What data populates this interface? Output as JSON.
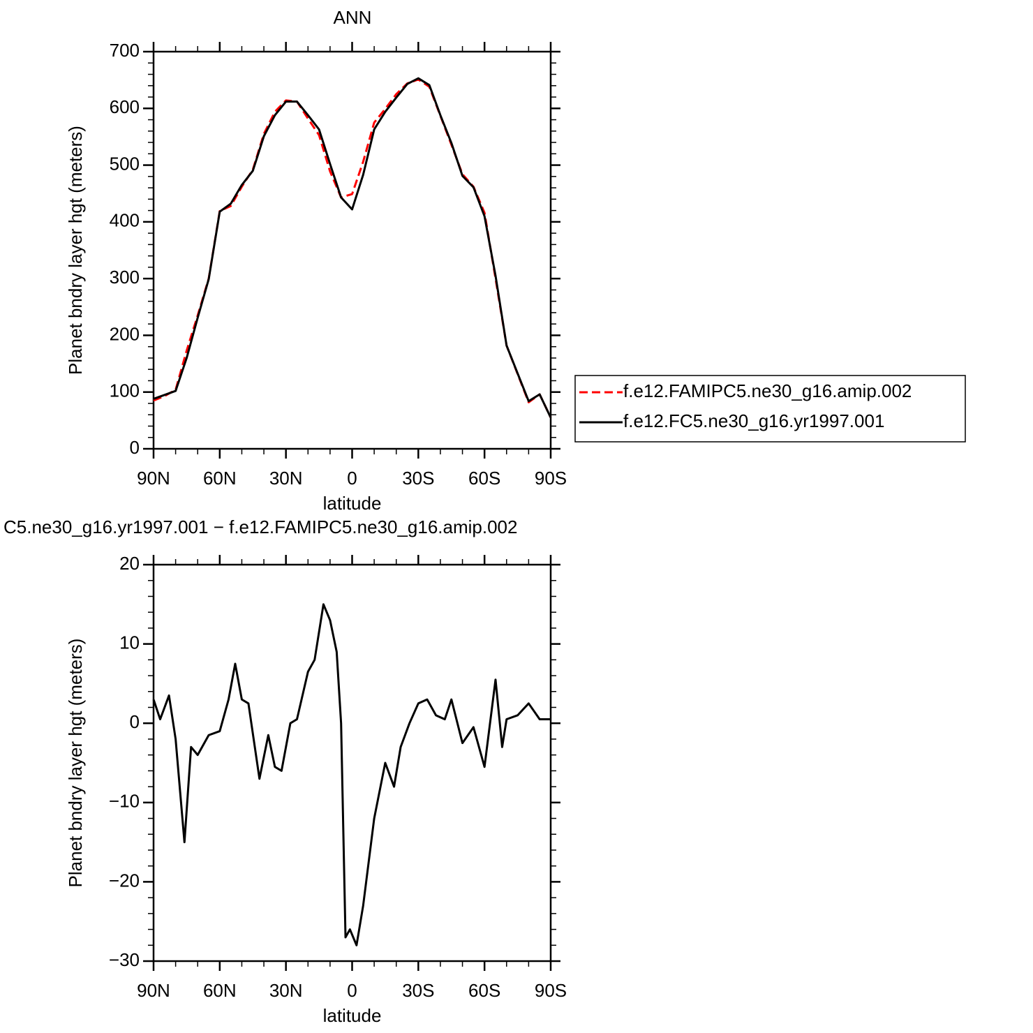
{
  "chart_data": [
    {
      "type": "line",
      "title": "ANN",
      "xlabel": "latitude",
      "ylabel": "Planet bndry layer hgt (meters)",
      "x": [
        90,
        85,
        80,
        75,
        70,
        65,
        60,
        55,
        50,
        45,
        40,
        35,
        30,
        25,
        20,
        15,
        10,
        5,
        0,
        -5,
        -10,
        -15,
        -20,
        -25,
        -30,
        -35,
        -40,
        -45,
        -50,
        -55,
        -60,
        -65,
        -70,
        -75,
        -80,
        -85,
        -90
      ],
      "series": [
        {
          "name": "f.e12.FAMIPC5.ne30_g16.amip.002",
          "color": "#ff0000",
          "style": "dashed",
          "values": [
            85,
            93,
            104,
            173,
            235,
            300,
            419,
            428,
            462,
            492,
            555,
            594,
            614,
            612,
            582,
            553,
            489,
            443,
            449,
            506,
            575,
            599,
            625,
            644,
            651,
            638,
            587,
            536,
            484,
            462,
            416,
            300,
            182,
            132,
            82,
            96,
            55
          ]
        },
        {
          "name": "f.e12.FC5.ne30_g16.yr1997.001",
          "color": "#000000",
          "style": "solid",
          "values": [
            88,
            95,
            102,
            160,
            231,
            299,
            418,
            432,
            465,
            490,
            551,
            588,
            612,
            612,
            588,
            563,
            502,
            443,
            422,
            483,
            563,
            594,
            619,
            643,
            653,
            641,
            588,
            539,
            481,
            461,
            410,
            305,
            182,
            133,
            84,
            96,
            55
          ]
        }
      ],
      "xlim": [
        90,
        -90
      ],
      "xticks": [
        {
          "value": 90,
          "label": "90N"
        },
        {
          "value": 60,
          "label": "60N"
        },
        {
          "value": 30,
          "label": "30N"
        },
        0,
        {
          "value": -30,
          "label": "30S"
        },
        {
          "value": -60,
          "label": "60S"
        },
        {
          "value": -90,
          "label": "90S"
        }
      ],
      "ylim": [
        0,
        700
      ],
      "yticks": [
        0,
        100,
        200,
        300,
        400,
        500,
        600,
        700
      ],
      "legend": "right"
    },
    {
      "type": "line",
      "title": "C5.ne30_g16.yr1997.001 − f.e12.FAMIPC5.ne30_g16.amip.002",
      "xlabel": "latitude",
      "ylabel": "Planet bndry layer hgt (meters)",
      "x": [
        90,
        87,
        83,
        80,
        76,
        73,
        70,
        65,
        60,
        56,
        53,
        50,
        47,
        42,
        38,
        35,
        32,
        28,
        25,
        20,
        17,
        13,
        10,
        7,
        5,
        3,
        1,
        -2,
        -5,
        -10,
        -15,
        -19,
        -22,
        -26,
        -30,
        -34,
        -38,
        -42,
        -45,
        -50,
        -55,
        -60,
        -65,
        -68,
        -70,
        -75,
        -80,
        -85,
        -90
      ],
      "values": [
        3,
        0.5,
        3.5,
        -2,
        -15,
        -3,
        -4,
        -1.5,
        -1,
        3,
        7.5,
        3,
        2.5,
        -7,
        -1.5,
        -5.5,
        -6,
        0,
        0.5,
        6.5,
        8,
        15,
        13,
        9,
        0,
        -27,
        -26,
        -28,
        -23,
        -12,
        -5,
        -8,
        -3,
        0,
        2.5,
        3,
        1,
        0.5,
        3,
        -2.5,
        -0.5,
        -5.5,
        5.5,
        -3,
        0.5,
        1,
        2.5,
        0.5,
        0.5
      ],
      "color": "#000000",
      "xlim": [
        90,
        -90
      ],
      "xticks": [
        {
          "value": 90,
          "label": "90N"
        },
        {
          "value": 60,
          "label": "60N"
        },
        {
          "value": 30,
          "label": "30N"
        },
        0,
        {
          "value": -30,
          "label": "30S"
        },
        {
          "value": -60,
          "label": "60S"
        },
        {
          "value": -90,
          "label": "90S"
        }
      ],
      "ylim": [
        -30,
        20
      ],
      "yticks": [
        {
          "value": -30,
          "label": "−30"
        },
        {
          "value": -20,
          "label": "−20"
        },
        {
          "value": -10,
          "label": "−10"
        },
        0,
        10,
        20
      ]
    }
  ]
}
